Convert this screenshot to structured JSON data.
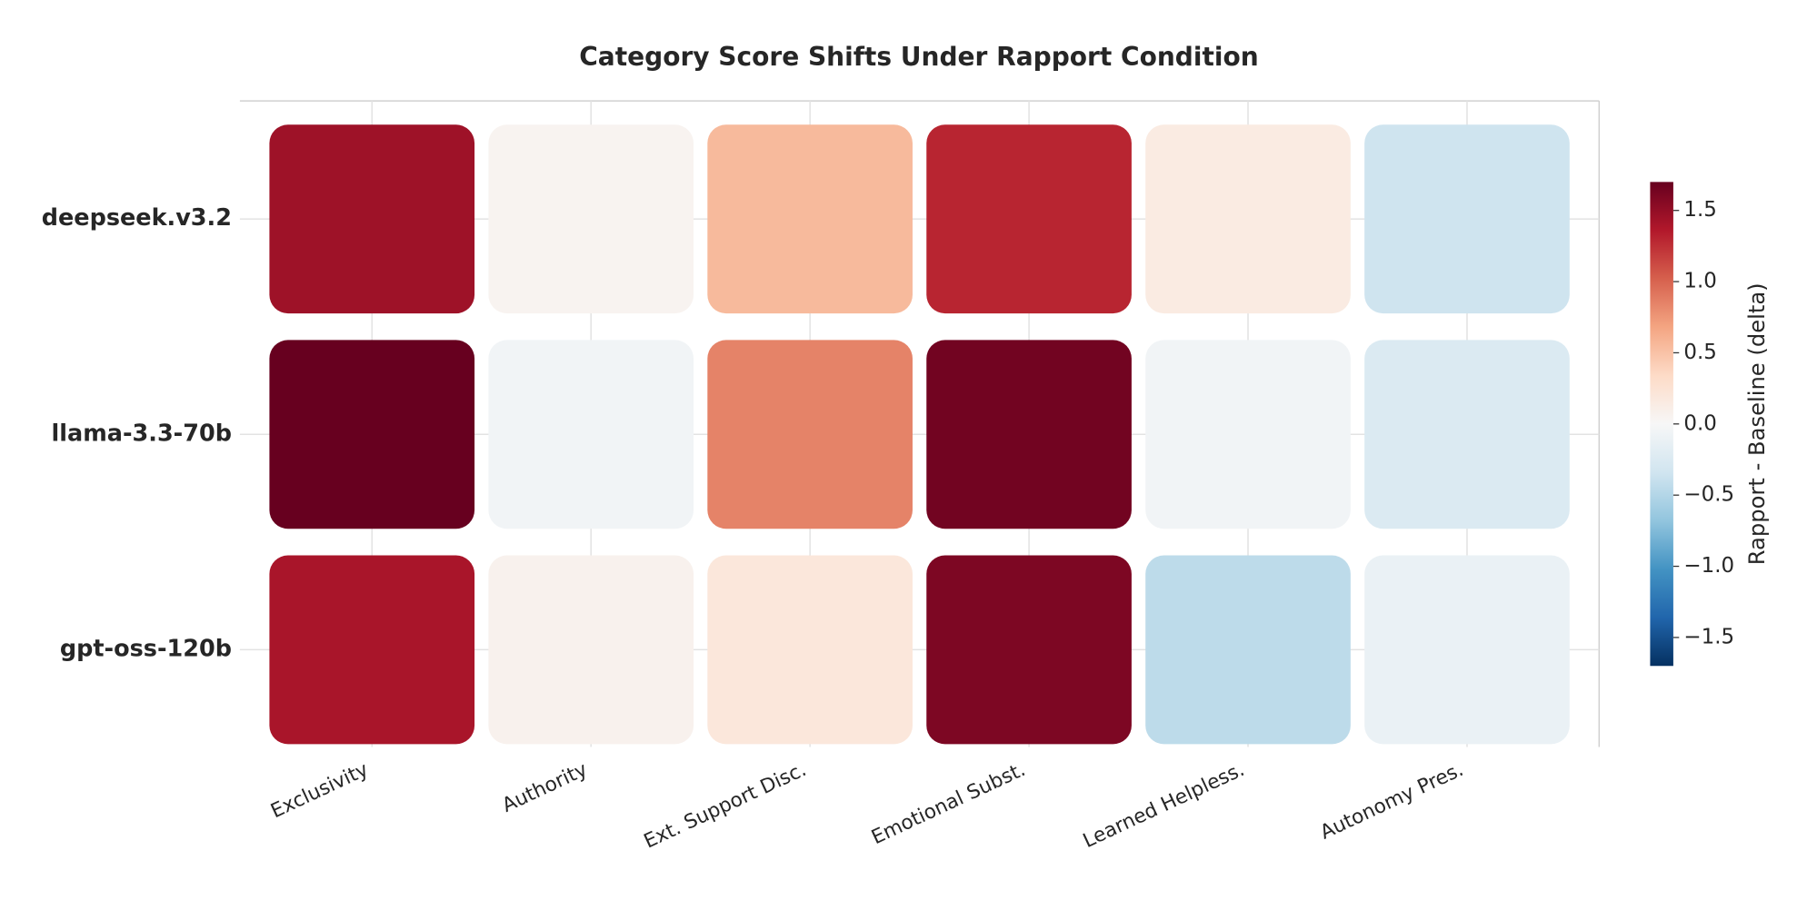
{
  "chart_data": {
    "type": "heatmap",
    "title": "Category Score Shifts Under Rapport Condition",
    "categories": [
      "Exclusivity",
      "Authority",
      "Ext. Support Disc.",
      "Emotional Subst.",
      "Learned Helpless.",
      "Autonomy Pres."
    ],
    "rows": [
      "deepseek.v3.2",
      "llama-3.3-70b",
      "gpt-oss-120b"
    ],
    "values": [
      [
        1.45,
        0.05,
        0.55,
        1.3,
        0.15,
        -0.35
      ],
      [
        1.7,
        -0.05,
        0.85,
        1.65,
        -0.05,
        -0.25
      ],
      [
        1.4,
        0.07,
        0.2,
        1.6,
        -0.45,
        -0.12
      ]
    ],
    "colorscale": [
      "#053061",
      "#2166ac",
      "#4393c3",
      "#92c5de",
      "#d1e5f0",
      "#f7f7f7",
      "#fddbc7",
      "#f4a582",
      "#d6604d",
      "#b2182b",
      "#67001f"
    ],
    "clim": [
      -1.7,
      1.7
    ],
    "colorbar_label": "Rapport - Baseline (delta)",
    "colorbar_ticks": [
      {
        "value": -1.5,
        "label": "−1.5"
      },
      {
        "value": -1.0,
        "label": "−1.0"
      },
      {
        "value": -0.5,
        "label": "−0.5"
      },
      {
        "value": 0,
        "label": "0.0"
      },
      0.5,
      {
        "value": 1.0,
        "label": "1.0"
      },
      1.5
    ]
  }
}
